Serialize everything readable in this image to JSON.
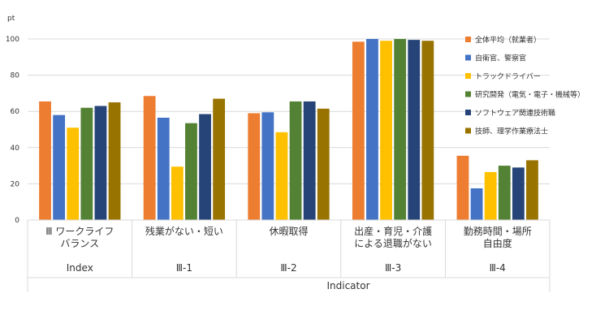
{
  "chart_data": {
    "type": "bar",
    "ylabel": "pt",
    "ylim": [
      0,
      100
    ],
    "yticks": [
      0,
      20,
      40,
      60,
      80,
      100
    ],
    "xlabel": "Indicator",
    "grid": true,
    "legend_position": "right",
    "categories": [
      {
        "label_lines": [
          "Ⅲ ワークライフ",
          "バランス"
        ],
        "sub": "Index"
      },
      {
        "label_lines": [
          "残業がない・短い"
        ],
        "sub": "Ⅲ-1"
      },
      {
        "label_lines": [
          "休暇取得"
        ],
        "sub": "Ⅲ-2"
      },
      {
        "label_lines": [
          "出産・育児・介護",
          "による退職がない"
        ],
        "sub": "Ⅲ-3"
      },
      {
        "label_lines": [
          "勤務時間・場所",
          "自由度"
        ],
        "sub": "Ⅲ-4"
      }
    ],
    "series": [
      {
        "name": "全体平均（就業者）",
        "color": "#ED7D31",
        "values": [
          65.5,
          68.5,
          59,
          98.5,
          35.5
        ]
      },
      {
        "name": "自衛官、警察官",
        "color": "#4472C4",
        "values": [
          58,
          56.5,
          59.5,
          100,
          17.5
        ]
      },
      {
        "name": "トラックドライバー",
        "color": "#FFC000",
        "values": [
          51,
          29.5,
          48.5,
          99,
          26.5
        ]
      },
      {
        "name": "研究開発（電気・電子・機械等）",
        "color": "#548235",
        "values": [
          62,
          53.5,
          65.5,
          100,
          30
        ]
      },
      {
        "name": "ソフトウェア関連技術職",
        "color": "#264478",
        "values": [
          63,
          58.5,
          65.5,
          99.5,
          29
        ]
      },
      {
        "name": "技師、理学作業療法士",
        "color": "#997300",
        "values": [
          65,
          67,
          61.5,
          99,
          33
        ]
      }
    ]
  }
}
